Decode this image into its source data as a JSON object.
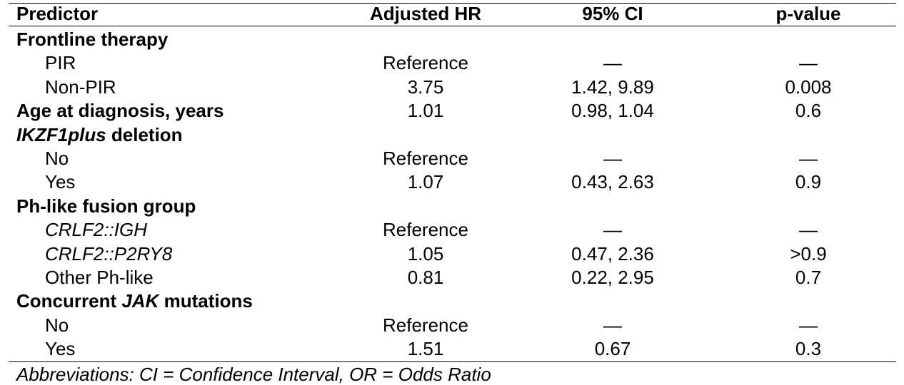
{
  "header": {
    "predictor": "Predictor",
    "hr": "Adjusted HR",
    "ci": "95% CI",
    "p": "p-value"
  },
  "sections": {
    "frontline": {
      "label": "Frontline therapy",
      "rows": [
        {
          "label": "PIR",
          "hr": "Reference",
          "ci": "—",
          "p": "—"
        },
        {
          "label": "Non-PIR",
          "hr": "3.75",
          "ci": "1.42, 9.89",
          "p": "0.008"
        }
      ]
    },
    "age": {
      "label": "Age at diagnosis, years",
      "hr": "1.01",
      "ci": "0.98, 1.04",
      "p": "0.6"
    },
    "ikzf1": {
      "label_italic": "IKZF1plus",
      "label_rest": " deletion",
      "rows": [
        {
          "label": "No",
          "hr": "Reference",
          "ci": "—",
          "p": "—"
        },
        {
          "label": "Yes",
          "hr": "1.07",
          "ci": "0.43, 2.63",
          "p": "0.9"
        }
      ]
    },
    "phlike": {
      "label": "Ph-like fusion group",
      "rows": [
        {
          "label": "CRLF2::IGH",
          "hr": "Reference",
          "ci": "—",
          "p": "—"
        },
        {
          "label": "CRLF2::P2RY8",
          "hr": "1.05",
          "ci": "0.47, 2.36",
          "p": ">0.9"
        },
        {
          "label": "Other Ph-like",
          "hr": "0.81",
          "ci": "0.22, 2.95",
          "p": "0.7"
        }
      ]
    },
    "jak": {
      "label_pre": "Concurrent ",
      "label_italic": "JAK",
      "label_post": " mutations",
      "rows": [
        {
          "label": "No",
          "hr": "Reference",
          "ci": "—",
          "p": "—"
        },
        {
          "label": "Yes",
          "hr": "1.51",
          "ci": "0.67",
          "p": "0.3"
        }
      ]
    }
  },
  "footnote": "Abbreviations: CI = Confidence Interval, OR = Odds Ratio"
}
